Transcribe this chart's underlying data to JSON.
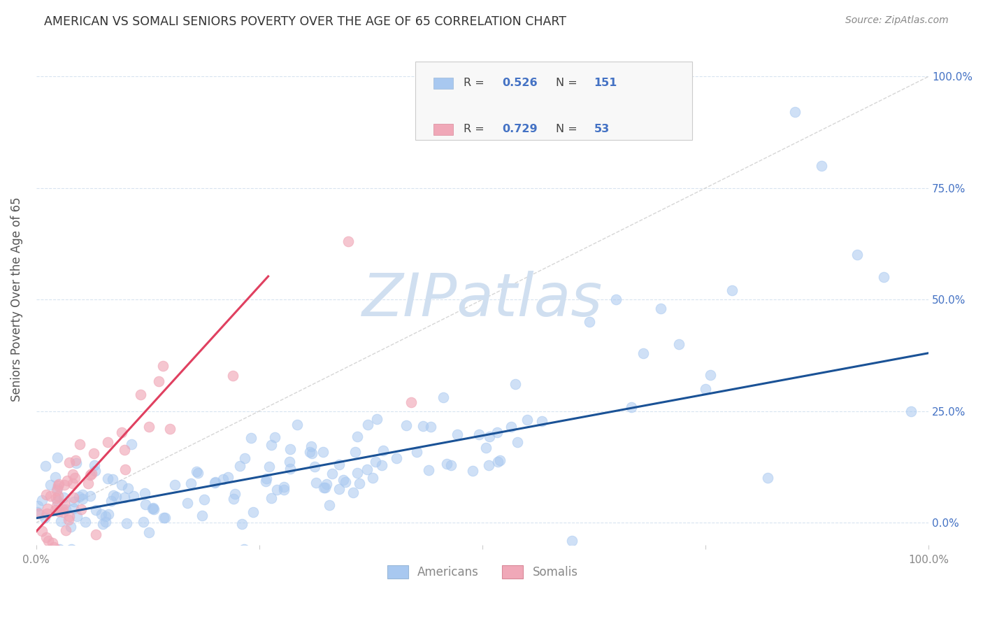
{
  "title": "AMERICAN VS SOMALI SENIORS POVERTY OVER THE AGE OF 65 CORRELATION CHART",
  "source": "Source: ZipAtlas.com",
  "ylabel": "Seniors Poverty Over the Age of 65",
  "xlim": [
    0,
    1
  ],
  "ylim": [
    -0.05,
    1.05
  ],
  "americans_R": 0.526,
  "americans_N": 151,
  "somalis_R": 0.729,
  "somalis_N": 53,
  "americans_color": "#a8c8f0",
  "somalis_color": "#f0a8b8",
  "americans_line_color": "#1a5296",
  "somalis_line_color": "#e0406080",
  "diagonal_color": "#cccccc",
  "watermark_text": "ZIPatlas",
  "watermark_color": "#d0dff0",
  "background_color": "#ffffff",
  "legend_americans_label": "Americans",
  "legend_somalis_label": "Somalis",
  "title_color": "#333333",
  "source_color": "#888888",
  "axis_label_color": "#555555",
  "tick_label_color": "#888888",
  "right_tick_color": "#4472c4",
  "grid_color": "#d8e4f0",
  "americans_line_intercept": 0.01,
  "americans_line_slope": 0.37,
  "somalis_line_intercept": -0.02,
  "somalis_line_slope": 2.2,
  "somalis_line_xmax": 0.26
}
